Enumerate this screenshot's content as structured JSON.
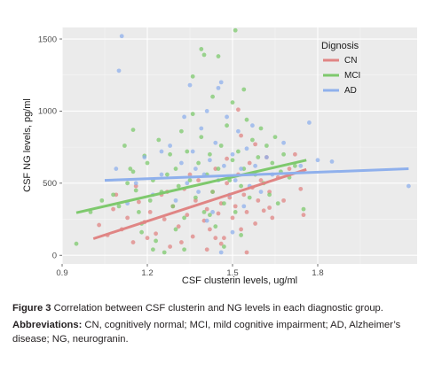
{
  "chart_data": {
    "type": "scatter",
    "xlabel": "CSF clusterin levels, ug/ml",
    "ylabel": "CSF NG levels, pg/ml",
    "xlim": [
      0.9,
      2.15
    ],
    "ylim": [
      -60,
      1580
    ],
    "x_ticks": [
      0.9,
      1.2,
      1.5,
      1.8
    ],
    "x_tick_labels": [
      "0.9",
      "1.2",
      "1.5",
      "1.8"
    ],
    "y_ticks": [
      0,
      500,
      1000,
      1500
    ],
    "y_tick_labels": [
      "0",
      "500",
      "1000",
      "1500"
    ],
    "grid": true,
    "background": "#ebebeb",
    "legend": {
      "title": "Dignosis",
      "position": "top-right"
    },
    "series": [
      {
        "name": "CN",
        "color": "#e08584",
        "trend": {
          "x": [
            1.01,
            1.76
          ],
          "y": [
            115,
            595
          ]
        },
        "points": [
          [
            1.03,
            210
          ],
          [
            1.06,
            140
          ],
          [
            1.08,
            320
          ],
          [
            1.11,
            180
          ],
          [
            1.13,
            260
          ],
          [
            1.15,
            90
          ],
          [
            1.17,
            370
          ],
          [
            1.19,
            230
          ],
          [
            1.21,
            300
          ],
          [
            1.23,
            150
          ],
          [
            1.25,
            420
          ],
          [
            1.26,
            250
          ],
          [
            1.28,
            60
          ],
          [
            1.29,
            340
          ],
          [
            1.31,
            200
          ],
          [
            1.33,
            460
          ],
          [
            1.34,
            280
          ],
          [
            1.36,
            130
          ],
          [
            1.37,
            380
          ],
          [
            1.38,
            520
          ],
          [
            1.4,
            240
          ],
          [
            1.41,
            320
          ],
          [
            1.42,
            180
          ],
          [
            1.43,
            440
          ],
          [
            1.44,
            600
          ],
          [
            1.45,
            290
          ],
          [
            1.46,
            360
          ],
          [
            1.47,
            120
          ],
          [
            1.48,
            500
          ],
          [
            1.49,
            400
          ],
          [
            1.5,
            260
          ],
          [
            1.51,
            340
          ],
          [
            1.52,
            560
          ],
          [
            1.53,
            180
          ],
          [
            1.54,
            420
          ],
          [
            1.55,
            300
          ],
          [
            1.56,
            640
          ],
          [
            1.57,
            470
          ],
          [
            1.58,
            220
          ],
          [
            1.59,
            380
          ],
          [
            1.6,
            520
          ],
          [
            1.61,
            310
          ],
          [
            1.62,
            680
          ],
          [
            1.63,
            440
          ],
          [
            1.64,
            260
          ],
          [
            1.66,
            540
          ],
          [
            1.68,
            380
          ],
          [
            1.7,
            600
          ],
          [
            1.72,
            700
          ],
          [
            1.74,
            460
          ],
          [
            1.75,
            280
          ],
          [
            1.2,
            120
          ],
          [
            1.27,
            440
          ],
          [
            1.35,
            560
          ],
          [
            1.52,
            1010
          ],
          [
            1.53,
            830
          ],
          [
            1.46,
            80
          ],
          [
            1.41,
            40
          ],
          [
            1.58,
            770
          ],
          [
            1.44,
            120
          ],
          [
            1.09,
            420
          ],
          [
            1.16,
            480
          ],
          [
            1.32,
            90
          ],
          [
            1.48,
            670
          ],
          [
            1.55,
            20
          ],
          [
            1.63,
            330
          ]
        ]
      },
      {
        "name": "MCI",
        "color": "#7ec96d",
        "trend": {
          "x": [
            0.95,
            1.76
          ],
          "y": [
            295,
            660
          ]
        },
        "points": [
          [
            0.95,
            80
          ],
          [
            1.0,
            300
          ],
          [
            1.04,
            380
          ],
          [
            1.08,
            420
          ],
          [
            1.1,
            340
          ],
          [
            1.12,
            760
          ],
          [
            1.13,
            500
          ],
          [
            1.15,
            580
          ],
          [
            1.15,
            870
          ],
          [
            1.16,
            450
          ],
          [
            1.17,
            300
          ],
          [
            1.18,
            220
          ],
          [
            1.19,
            690
          ],
          [
            1.2,
            640
          ],
          [
            1.21,
            380
          ],
          [
            1.22,
            520
          ],
          [
            1.23,
            100
          ],
          [
            1.24,
            800
          ],
          [
            1.25,
            440
          ],
          [
            1.26,
            20
          ],
          [
            1.27,
            560
          ],
          [
            1.28,
            700
          ],
          [
            1.29,
            340
          ],
          [
            1.3,
            600
          ],
          [
            1.31,
            480
          ],
          [
            1.32,
            860
          ],
          [
            1.33,
            260
          ],
          [
            1.34,
            720
          ],
          [
            1.35,
            520
          ],
          [
            1.36,
            1240
          ],
          [
            1.36,
            980
          ],
          [
            1.37,
            400
          ],
          [
            1.38,
            640
          ],
          [
            1.39,
            820
          ],
          [
            1.4,
            1390
          ],
          [
            1.4,
            300
          ],
          [
            1.41,
            560
          ],
          [
            1.42,
            700
          ],
          [
            1.43,
            1100
          ],
          [
            1.43,
            440
          ],
          [
            1.44,
            200
          ],
          [
            1.45,
            600
          ],
          [
            1.46,
            760
          ],
          [
            1.47,
            360
          ],
          [
            1.48,
            900
          ],
          [
            1.49,
            520
          ],
          [
            1.5,
            1060
          ],
          [
            1.5,
            660
          ],
          [
            1.51,
            1560
          ],
          [
            1.51,
            300
          ],
          [
            1.52,
            720
          ],
          [
            1.53,
            480
          ],
          [
            1.54,
            1150
          ],
          [
            1.54,
            600
          ],
          [
            1.55,
            940
          ],
          [
            1.56,
            400
          ],
          [
            1.57,
            800
          ],
          [
            1.58,
            560
          ],
          [
            1.59,
            680
          ],
          [
            1.6,
            880
          ],
          [
            1.61,
            500
          ],
          [
            1.62,
            760
          ],
          [
            1.63,
            420
          ],
          [
            1.64,
            640
          ],
          [
            1.65,
            820
          ],
          [
            1.66,
            360
          ],
          [
            1.67,
            580
          ],
          [
            1.68,
            700
          ],
          [
            1.7,
            540
          ],
          [
            1.72,
            620
          ],
          [
            1.75,
            320
          ],
          [
            1.3,
            180
          ],
          [
            1.22,
            40
          ],
          [
            1.33,
            40
          ],
          [
            1.18,
            160
          ],
          [
            1.14,
            600
          ],
          [
            1.42,
            280
          ],
          [
            1.47,
            60
          ],
          [
            1.53,
            140
          ],
          [
            1.39,
            1430
          ],
          [
            1.45,
            1380
          ]
        ]
      },
      {
        "name": "AD",
        "color": "#8fb0ec",
        "trend": {
          "x": [
            1.05,
            2.12
          ],
          "y": [
            520,
            600
          ]
        },
        "points": [
          [
            1.11,
            1520
          ],
          [
            1.1,
            1280
          ],
          [
            1.09,
            600
          ],
          [
            1.13,
            360
          ],
          [
            1.16,
            500
          ],
          [
            1.19,
            680
          ],
          [
            1.22,
            420
          ],
          [
            1.25,
            560
          ],
          [
            1.28,
            760
          ],
          [
            1.3,
            380
          ],
          [
            1.32,
            640
          ],
          [
            1.33,
            960
          ],
          [
            1.34,
            500
          ],
          [
            1.35,
            1180
          ],
          [
            1.36,
            720
          ],
          [
            1.37,
            600
          ],
          [
            1.38,
            440
          ],
          [
            1.39,
            880
          ],
          [
            1.4,
            560
          ],
          [
            1.41,
            1000
          ],
          [
            1.42,
            660
          ],
          [
            1.43,
            300
          ],
          [
            1.44,
            780
          ],
          [
            1.45,
            1160
          ],
          [
            1.45,
            520
          ],
          [
            1.46,
            1200
          ],
          [
            1.47,
            620
          ],
          [
            1.48,
            960
          ],
          [
            1.49,
            420
          ],
          [
            1.5,
            700
          ],
          [
            1.51,
            520
          ],
          [
            1.52,
            860
          ],
          [
            1.53,
            600
          ],
          [
            1.54,
            340
          ],
          [
            1.55,
            740
          ],
          [
            1.56,
            480
          ],
          [
            1.57,
            900
          ],
          [
            1.58,
            620
          ],
          [
            1.6,
            440
          ],
          [
            1.62,
            680
          ],
          [
            1.64,
            560
          ],
          [
            1.68,
            780
          ],
          [
            1.74,
            620
          ],
          [
            1.77,
            920
          ],
          [
            1.8,
            660
          ],
          [
            1.85,
            650
          ],
          [
            2.12,
            480
          ],
          [
            1.46,
            20
          ],
          [
            1.5,
            160
          ],
          [
            1.25,
            720
          ],
          [
            1.41,
            240
          ]
        ]
      }
    ]
  },
  "caption": {
    "figure_label": "Figure 3",
    "figure_text": " Correlation between CSF clusterin and NG levels in each diagnostic group.",
    "abbrev_label": "Abbreviations:",
    "abbrev_text": " CN, cognitively normal; MCI, mild cognitive impairment; AD, Alzheimer’s disease; NG, neurogranin."
  }
}
